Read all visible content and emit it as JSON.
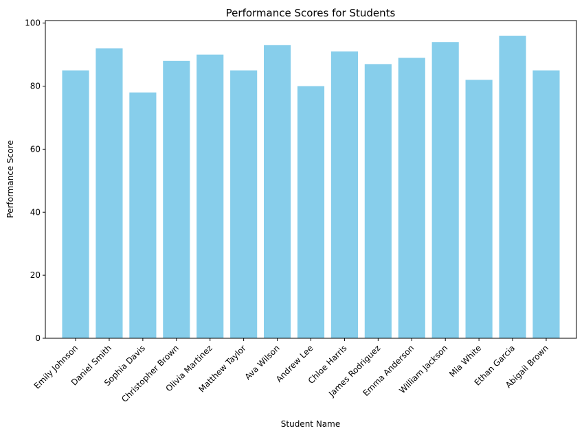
{
  "chart_data": {
    "type": "bar",
    "title": "Performance Scores for Students",
    "xlabel": "Student Name",
    "ylabel": "Performance Score",
    "categories": [
      "Emily Johnson",
      "Daniel Smith",
      "Sophia Davis",
      "Christopher Brown",
      "Olivia Martinez",
      "Matthew Taylor",
      "Ava Wilson",
      "Andrew Lee",
      "Chloe Harris",
      "James Rodriguez",
      "Emma Anderson",
      "William Jackson",
      "Mia White",
      "Ethan Garcia",
      "Abigail Brown"
    ],
    "values": [
      85,
      92,
      78,
      88,
      90,
      85,
      93,
      80,
      91,
      87,
      89,
      94,
      82,
      96,
      85
    ],
    "ylim": [
      0,
      100.8
    ],
    "yticks": [
      0,
      20,
      40,
      60,
      80,
      100
    ],
    "bar_color": "#87ceeb",
    "grid": false,
    "legend": false
  }
}
